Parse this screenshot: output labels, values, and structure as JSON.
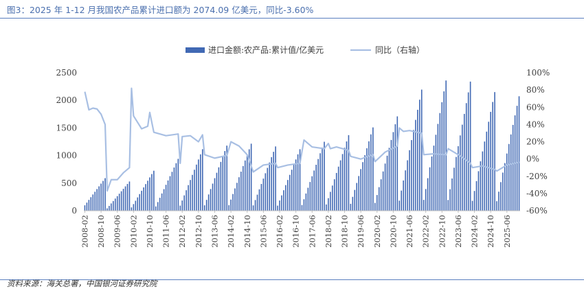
{
  "figure_title": "图3：2025 年 1-12 月我国农产品累计进口额为 2074.09 亿美元，同比-3.60%",
  "source": "资料来源：海关总署，中国银河证券研究院",
  "colors": {
    "bar": "#4169b4",
    "line": "#a8bfe3",
    "title": "#4a6fae",
    "axis": "#bfbfbf",
    "text": "#404040"
  },
  "chart_data": {
    "type": "bar",
    "legend_position": "top",
    "grid": false,
    "series": [
      {
        "name": "进口金额:农产品:累计值/亿美元",
        "type": "bar",
        "axis": "left"
      },
      {
        "name": "同比（右轴）",
        "type": "line",
        "axis": "right"
      }
    ],
    "y_left": {
      "lim": [
        0,
        2500
      ],
      "ticks": [
        "0",
        "500",
        "1000",
        "1500",
        "2000",
        "2500"
      ]
    },
    "y_right": {
      "lim": [
        -60,
        100
      ],
      "ticks": [
        "-60%",
        "-40%",
        "-20%",
        "0%",
        "20%",
        "40%",
        "60%",
        "80%",
        "100%"
      ]
    },
    "x_ticks": [
      "2008-02",
      "2008-10",
      "2009-06",
      "2010-02",
      "2010-10",
      "2011-06",
      "2012-02",
      "2012-10",
      "2013-06",
      "2014-02",
      "2014-10",
      "2015-06",
      "2016-02",
      "2016-10",
      "2017-06",
      "2018-02",
      "2018-10",
      "2019-06",
      "2020-02",
      "2020-10",
      "2021-06",
      "2022-02",
      "2022-10",
      "2023-06",
      "2024-02",
      "2024-10",
      "2025-06"
    ],
    "annual_totals": [
      {
        "year": 2008,
        "start_month": 2,
        "end_month": 12,
        "total": 590
      },
      {
        "year": 2009,
        "start_month": 1,
        "end_month": 12,
        "total": 530
      },
      {
        "year": 2010,
        "start_month": 1,
        "end_month": 12,
        "total": 725
      },
      {
        "year": 2011,
        "start_month": 1,
        "end_month": 12,
        "total": 940
      },
      {
        "year": 2012,
        "start_month": 1,
        "end_month": 12,
        "total": 1115
      },
      {
        "year": 2013,
        "start_month": 1,
        "end_month": 12,
        "total": 1180
      },
      {
        "year": 2014,
        "start_month": 1,
        "end_month": 12,
        "total": 1215
      },
      {
        "year": 2015,
        "start_month": 1,
        "end_month": 12,
        "total": 1165
      },
      {
        "year": 2016,
        "start_month": 1,
        "end_month": 12,
        "total": 1115
      },
      {
        "year": 2017,
        "start_month": 1,
        "end_month": 12,
        "total": 1250
      },
      {
        "year": 2018,
        "start_month": 1,
        "end_month": 12,
        "total": 1370
      },
      {
        "year": 2019,
        "start_month": 1,
        "end_month": 12,
        "total": 1510
      },
      {
        "year": 2020,
        "start_month": 1,
        "end_month": 12,
        "total": 1710
      },
      {
        "year": 2021,
        "start_month": 1,
        "end_month": 12,
        "total": 2195
      },
      {
        "year": 2022,
        "start_month": 1,
        "end_month": 12,
        "total": 2360
      },
      {
        "year": 2023,
        "start_month": 1,
        "end_month": 12,
        "total": 2340
      },
      {
        "year": 2024,
        "start_month": 1,
        "end_month": 12,
        "total": 2150
      },
      {
        "year": 2025,
        "start_month": 1,
        "end_month": 12,
        "total": 2074.09
      }
    ],
    "yoy_pct": [
      {
        "x": "2008-02",
        "y": 78
      },
      {
        "x": "2008-04",
        "y": 57
      },
      {
        "x": "2008-06",
        "y": 59
      },
      {
        "x": "2008-08",
        "y": 58
      },
      {
        "x": "2008-10",
        "y": 52
      },
      {
        "x": "2008-12",
        "y": 40
      },
      {
        "x": "2009-01",
        "y": -37
      },
      {
        "x": "2009-03",
        "y": -24
      },
      {
        "x": "2009-06",
        "y": -24
      },
      {
        "x": "2009-09",
        "y": -16
      },
      {
        "x": "2009-12",
        "y": -10
      },
      {
        "x": "2010-01",
        "y": 82
      },
      {
        "x": "2010-02",
        "y": 50
      },
      {
        "x": "2010-06",
        "y": 35
      },
      {
        "x": "2010-09",
        "y": 38
      },
      {
        "x": "2010-10",
        "y": 54
      },
      {
        "x": "2010-12",
        "y": 31
      },
      {
        "x": "2011-06",
        "y": 27
      },
      {
        "x": "2011-12",
        "y": 29
      },
      {
        "x": "2012-01",
        "y": -5
      },
      {
        "x": "2012-02",
        "y": 26
      },
      {
        "x": "2012-06",
        "y": 27
      },
      {
        "x": "2012-10",
        "y": 20
      },
      {
        "x": "2012-12",
        "y": 28
      },
      {
        "x": "2013-01",
        "y": 5
      },
      {
        "x": "2013-06",
        "y": 1
      },
      {
        "x": "2013-12",
        "y": 4
      },
      {
        "x": "2014-02",
        "y": 20
      },
      {
        "x": "2014-06",
        "y": 15
      },
      {
        "x": "2014-10",
        "y": 5
      },
      {
        "x": "2015-01",
        "y": -15
      },
      {
        "x": "2015-06",
        "y": -7
      },
      {
        "x": "2015-12",
        "y": -5
      },
      {
        "x": "2016-01",
        "y": -10
      },
      {
        "x": "2016-06",
        "y": -7
      },
      {
        "x": "2016-12",
        "y": -5
      },
      {
        "x": "2017-02",
        "y": 22
      },
      {
        "x": "2017-06",
        "y": 14
      },
      {
        "x": "2017-12",
        "y": 12
      },
      {
        "x": "2018-02",
        "y": 18
      },
      {
        "x": "2018-03",
        "y": 12
      },
      {
        "x": "2018-06",
        "y": 14
      },
      {
        "x": "2018-12",
        "y": 10
      },
      {
        "x": "2019-01",
        "y": 3
      },
      {
        "x": "2019-06",
        "y": 0
      },
      {
        "x": "2019-12",
        "y": 5
      },
      {
        "x": "2020-01",
        "y": -3
      },
      {
        "x": "2020-06",
        "y": 8
      },
      {
        "x": "2020-12",
        "y": 15
      },
      {
        "x": "2021-01",
        "y": 36
      },
      {
        "x": "2021-03",
        "y": 32
      },
      {
        "x": "2021-06",
        "y": 33
      },
      {
        "x": "2021-12",
        "y": 30
      },
      {
        "x": "2022-01",
        "y": 5
      },
      {
        "x": "2022-06",
        "y": 6
      },
      {
        "x": "2022-12",
        "y": 5
      },
      {
        "x": "2023-01",
        "y": 12
      },
      {
        "x": "2023-06",
        "y": 5
      },
      {
        "x": "2023-12",
        "y": -5
      },
      {
        "x": "2024-01",
        "y": -10
      },
      {
        "x": "2024-06",
        "y": -8
      },
      {
        "x": "2024-12",
        "y": -12
      },
      {
        "x": "2025-01",
        "y": -14
      },
      {
        "x": "2025-06",
        "y": -7
      },
      {
        "x": "2025-12",
        "y": -3.6
      }
    ]
  }
}
